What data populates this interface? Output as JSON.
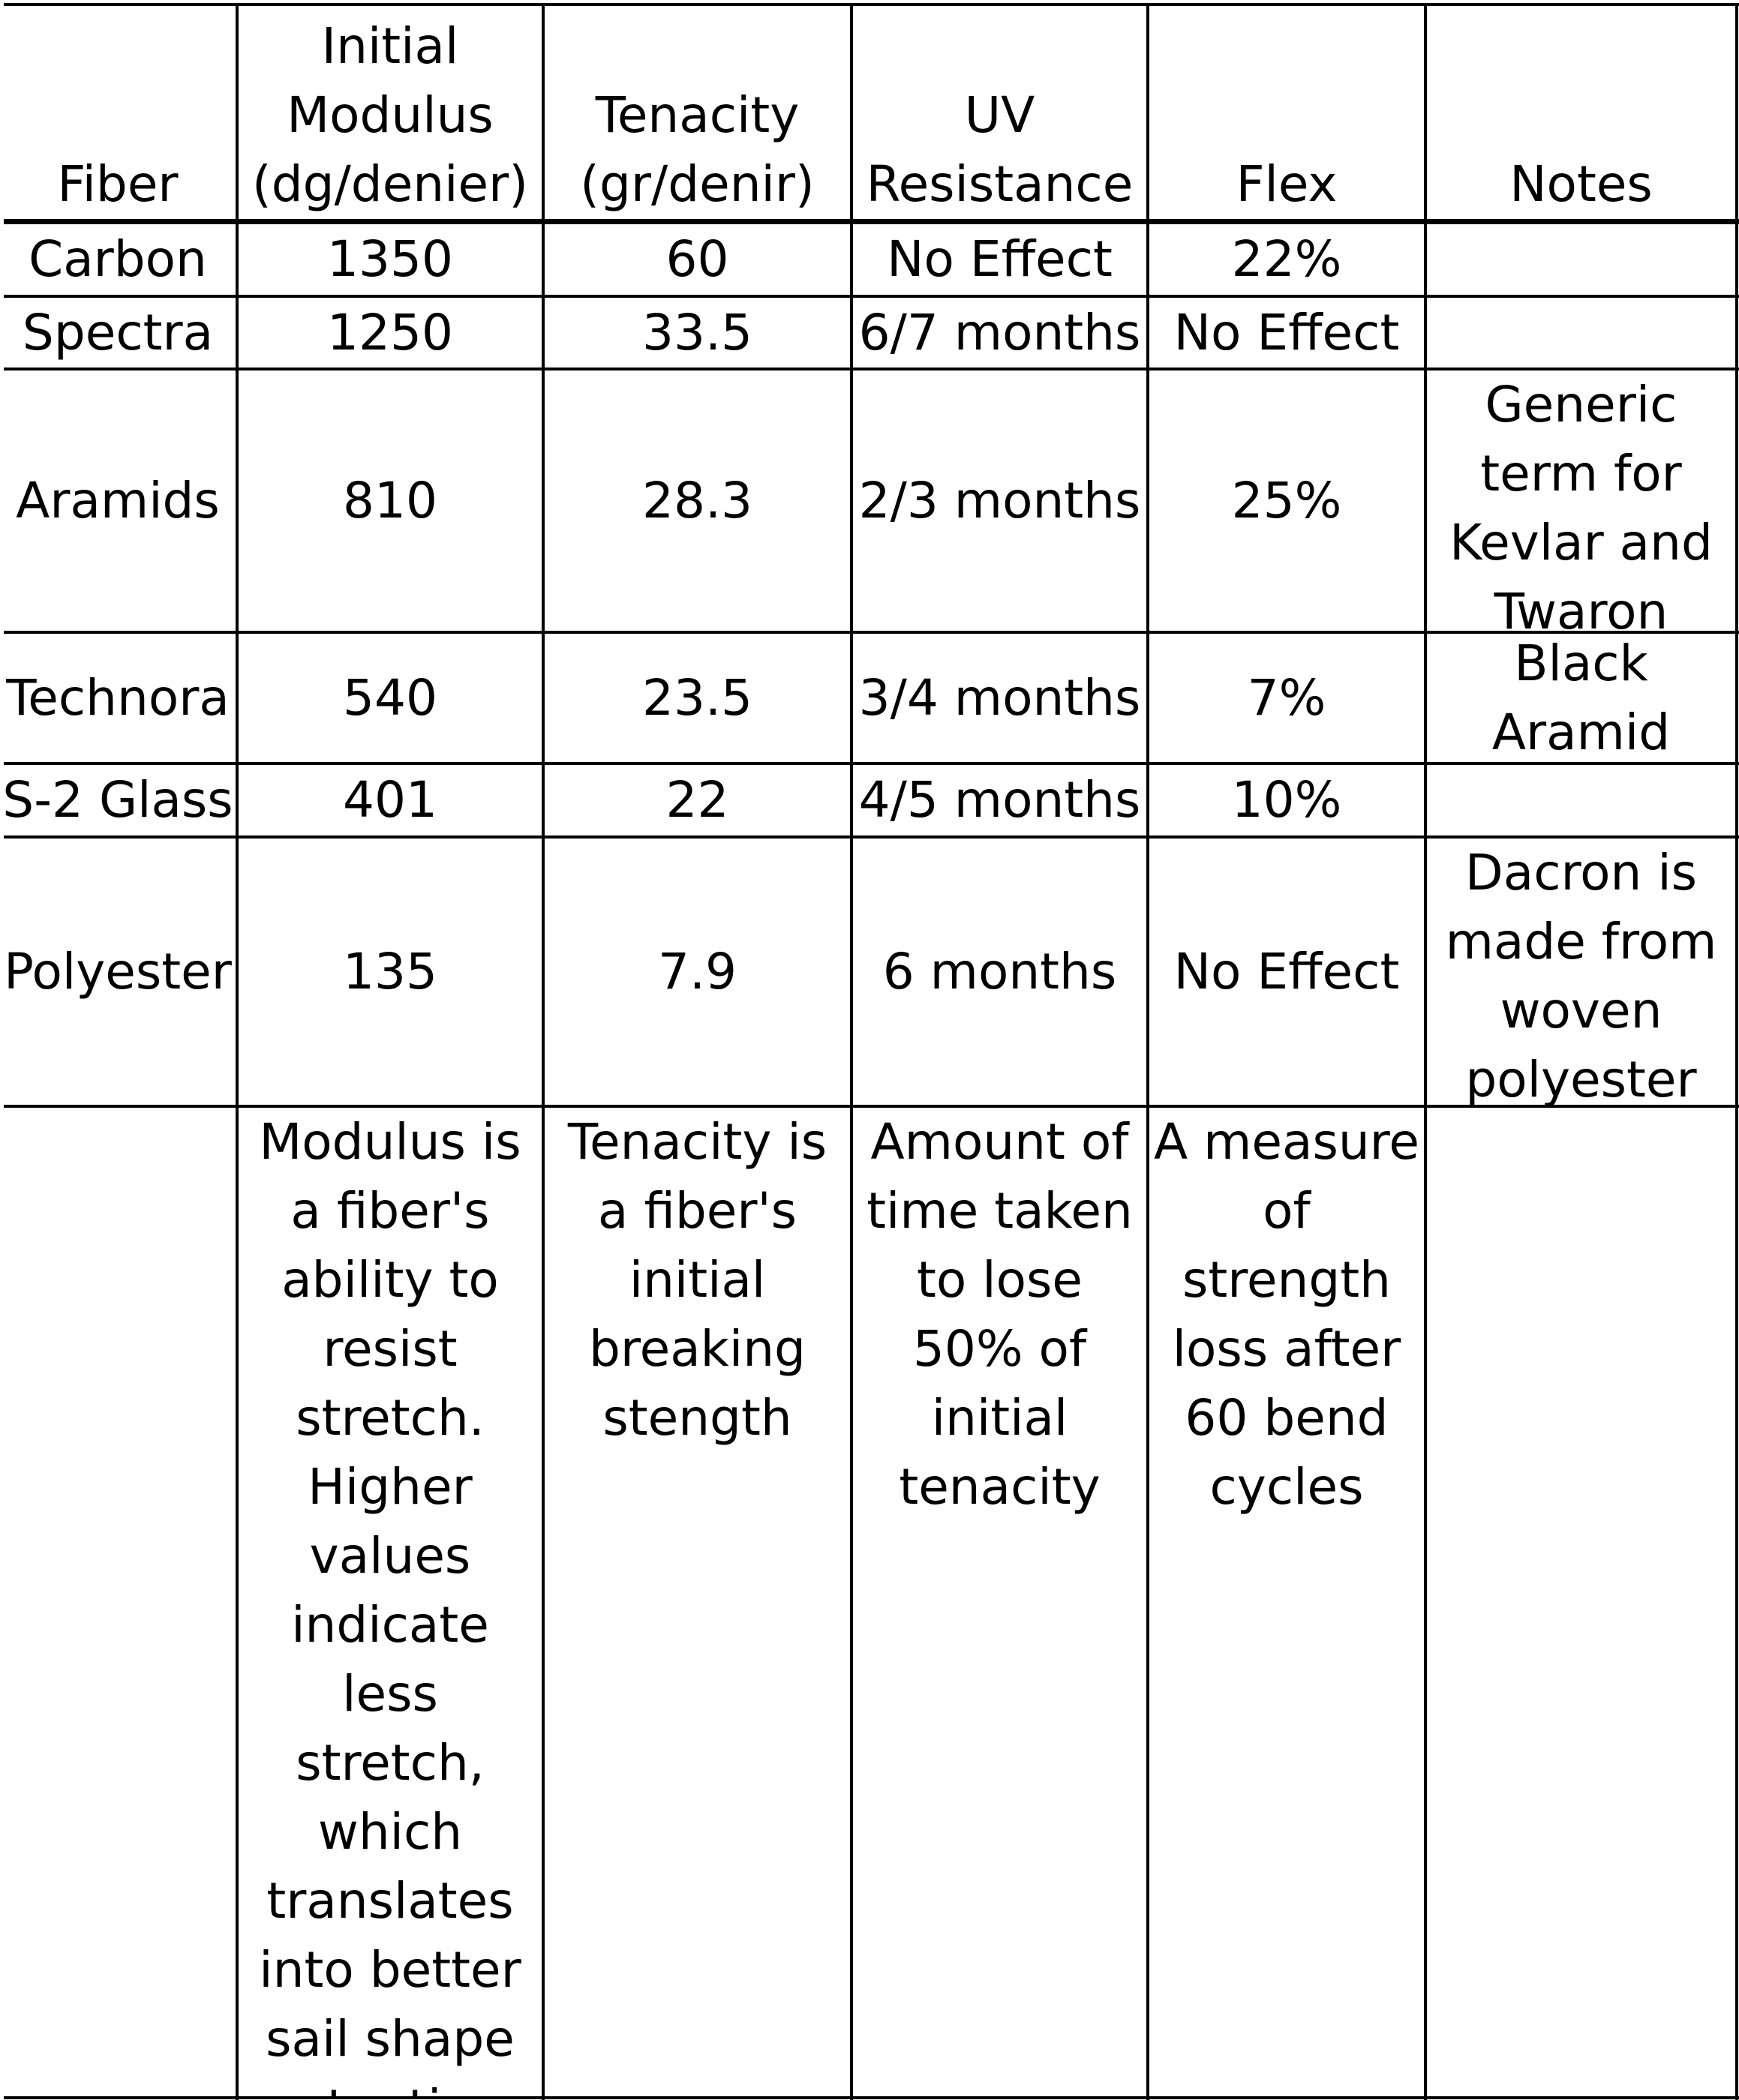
{
  "table": {
    "headers": [
      "Fiber",
      "Initial\nModulus\n(dg/denier)",
      "Tenacity\n(gr/denir)",
      "UV\nResistance",
      "Flex",
      "Notes"
    ],
    "rows": [
      {
        "fiber": "Carbon",
        "modulus": "1350",
        "tenacity": "60",
        "uv": "No Effect",
        "flex": "22%",
        "notes": ""
      },
      {
        "fiber": "Spectra",
        "modulus": "1250",
        "tenacity": "33.5",
        "uv": "6/7 months",
        "flex": "No Effect",
        "notes": ""
      },
      {
        "fiber": "Aramids",
        "modulus": "810",
        "tenacity": "28.3",
        "uv": "2/3 months",
        "flex": "25%",
        "notes": "Generic\nterm for\nKevlar and\nTwaron"
      },
      {
        "fiber": "Technora",
        "modulus": "540",
        "tenacity": "23.5",
        "uv": "3/4 months",
        "flex": "7%",
        "notes": "Black\nAramid"
      },
      {
        "fiber": "S-2 Glass",
        "modulus": "401",
        "tenacity": "22",
        "uv": "4/5 months",
        "flex": "10%",
        "notes": ""
      },
      {
        "fiber": "Polyester",
        "modulus": "135",
        "tenacity": "7.9",
        "uv": "6 months",
        "flex": "No Effect",
        "notes": "Dacron is\nmade from\nwoven\npolyester"
      }
    ],
    "descriptions": {
      "fiber": "",
      "modulus": "Modulus is\na fiber's\nability to\nresist\nstretch.\nHigher\nvalues\nindicate\nless\nstretch,\nwhich\ntranslates\ninto better\nsail shape\nretention",
      "tenacity": "Tenacity is\na fiber's\ninitial\nbreaking\nstength",
      "uv": "Amount of\ntime taken\nto lose\n50% of\ninitial\ntenacity",
      "flex": "A measure\nof\nstrength\nloss after\n60 bend\ncycles",
      "notes": ""
    }
  }
}
